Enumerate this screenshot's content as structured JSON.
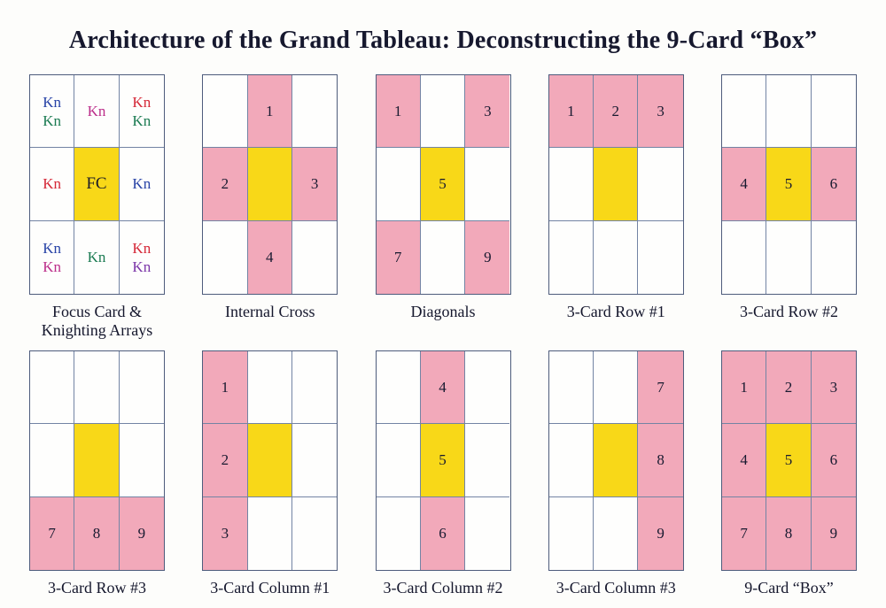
{
  "title": "Architecture of the Grand Tableau: Deconstructing the 9-Card “Box”",
  "colors": {
    "pink": "#f2a9ba",
    "yellow": "#f8d818",
    "white": "#fefefd",
    "grid_line": "#7384a4",
    "grid_border": "#4e5c7c",
    "dark": "#181a30",
    "blue": "#2742a6",
    "green": "#1b7b52",
    "red": "#d52737",
    "magenta": "#bc2e8a",
    "purple": "#7b35a8",
    "black": "#1c1c28"
  },
  "grids": [
    {
      "caption": "Focus Card &\nKnighting Arrays",
      "cells": [
        {
          "bg": "white",
          "lines": [
            {
              "text": "Kn",
              "color": "blue"
            },
            {
              "text": "Kn",
              "color": "green"
            }
          ]
        },
        {
          "bg": "white",
          "lines": [
            {
              "text": "Kn",
              "color": "magenta"
            }
          ]
        },
        {
          "bg": "white",
          "lines": [
            {
              "text": "Kn",
              "color": "red"
            },
            {
              "text": "Kn",
              "color": "green"
            }
          ]
        },
        {
          "bg": "white",
          "lines": [
            {
              "text": "Kn",
              "color": "red"
            }
          ]
        },
        {
          "bg": "yellow",
          "lines": [
            {
              "text": "FC",
              "color": "black"
            }
          ]
        },
        {
          "bg": "white",
          "lines": [
            {
              "text": "Kn",
              "color": "blue"
            }
          ]
        },
        {
          "bg": "white",
          "lines": [
            {
              "text": "Kn",
              "color": "blue"
            },
            {
              "text": "Kn",
              "color": "magenta"
            }
          ]
        },
        {
          "bg": "white",
          "lines": [
            {
              "text": "Kn",
              "color": "green"
            }
          ]
        },
        {
          "bg": "white",
          "lines": [
            {
              "text": "Kn",
              "color": "red"
            },
            {
              "text": "Kn",
              "color": "purple"
            }
          ]
        }
      ]
    },
    {
      "caption": "Internal Cross",
      "cells": [
        {
          "bg": "white",
          "lines": []
        },
        {
          "bg": "pink",
          "lines": [
            {
              "text": "1",
              "color": "dark"
            }
          ]
        },
        {
          "bg": "white",
          "lines": []
        },
        {
          "bg": "pink",
          "lines": [
            {
              "text": "2",
              "color": "dark"
            }
          ]
        },
        {
          "bg": "yellow",
          "lines": []
        },
        {
          "bg": "pink",
          "lines": [
            {
              "text": "3",
              "color": "dark"
            }
          ]
        },
        {
          "bg": "white",
          "lines": []
        },
        {
          "bg": "pink",
          "lines": [
            {
              "text": "4",
              "color": "dark"
            }
          ]
        },
        {
          "bg": "white",
          "lines": []
        }
      ]
    },
    {
      "caption": "Diagonals",
      "cells": [
        {
          "bg": "pink",
          "lines": [
            {
              "text": "1",
              "color": "dark"
            }
          ]
        },
        {
          "bg": "white",
          "lines": []
        },
        {
          "bg": "pink",
          "lines": [
            {
              "text": "3",
              "color": "dark"
            }
          ]
        },
        {
          "bg": "white",
          "lines": []
        },
        {
          "bg": "yellow",
          "lines": [
            {
              "text": "5",
              "color": "dark"
            }
          ]
        },
        {
          "bg": "white",
          "lines": []
        },
        {
          "bg": "pink",
          "lines": [
            {
              "text": "7",
              "color": "dark"
            }
          ]
        },
        {
          "bg": "white",
          "lines": []
        },
        {
          "bg": "pink",
          "lines": [
            {
              "text": "9",
              "color": "dark"
            }
          ]
        }
      ]
    },
    {
      "caption": "3-Card Row #1",
      "cells": [
        {
          "bg": "pink",
          "lines": [
            {
              "text": "1",
              "color": "dark"
            }
          ]
        },
        {
          "bg": "pink",
          "lines": [
            {
              "text": "2",
              "color": "dark"
            }
          ]
        },
        {
          "bg": "pink",
          "lines": [
            {
              "text": "3",
              "color": "dark"
            }
          ]
        },
        {
          "bg": "white",
          "lines": []
        },
        {
          "bg": "yellow",
          "lines": []
        },
        {
          "bg": "white",
          "lines": []
        },
        {
          "bg": "white",
          "lines": []
        },
        {
          "bg": "white",
          "lines": []
        },
        {
          "bg": "white",
          "lines": []
        }
      ]
    },
    {
      "caption": "3-Card Row #2",
      "cells": [
        {
          "bg": "white",
          "lines": []
        },
        {
          "bg": "white",
          "lines": []
        },
        {
          "bg": "white",
          "lines": []
        },
        {
          "bg": "pink",
          "lines": [
            {
              "text": "4",
              "color": "dark"
            }
          ]
        },
        {
          "bg": "yellow",
          "lines": [
            {
              "text": "5",
              "color": "dark"
            }
          ]
        },
        {
          "bg": "pink",
          "lines": [
            {
              "text": "6",
              "color": "dark"
            }
          ]
        },
        {
          "bg": "white",
          "lines": []
        },
        {
          "bg": "white",
          "lines": []
        },
        {
          "bg": "white",
          "lines": []
        }
      ]
    },
    {
      "caption": "3-Card Row #3",
      "cells": [
        {
          "bg": "white",
          "lines": []
        },
        {
          "bg": "white",
          "lines": []
        },
        {
          "bg": "white",
          "lines": []
        },
        {
          "bg": "white",
          "lines": []
        },
        {
          "bg": "yellow",
          "lines": []
        },
        {
          "bg": "white",
          "lines": []
        },
        {
          "bg": "pink",
          "lines": [
            {
              "text": "7",
              "color": "dark"
            }
          ]
        },
        {
          "bg": "pink",
          "lines": [
            {
              "text": "8",
              "color": "dark"
            }
          ]
        },
        {
          "bg": "pink",
          "lines": [
            {
              "text": "9",
              "color": "dark"
            }
          ]
        }
      ]
    },
    {
      "caption": "3-Card Column #1",
      "cells": [
        {
          "bg": "pink",
          "lines": [
            {
              "text": "1",
              "color": "dark"
            }
          ]
        },
        {
          "bg": "white",
          "lines": []
        },
        {
          "bg": "white",
          "lines": []
        },
        {
          "bg": "pink",
          "lines": [
            {
              "text": "2",
              "color": "dark"
            }
          ]
        },
        {
          "bg": "yellow",
          "lines": []
        },
        {
          "bg": "white",
          "lines": []
        },
        {
          "bg": "pink",
          "lines": [
            {
              "text": "3",
              "color": "dark"
            }
          ]
        },
        {
          "bg": "white",
          "lines": []
        },
        {
          "bg": "white",
          "lines": []
        }
      ]
    },
    {
      "caption": "3-Card Column #2",
      "cells": [
        {
          "bg": "white",
          "lines": []
        },
        {
          "bg": "pink",
          "lines": [
            {
              "text": "4",
              "color": "dark"
            }
          ]
        },
        {
          "bg": "white",
          "lines": []
        },
        {
          "bg": "white",
          "lines": []
        },
        {
          "bg": "yellow",
          "lines": [
            {
              "text": "5",
              "color": "dark"
            }
          ]
        },
        {
          "bg": "white",
          "lines": []
        },
        {
          "bg": "white",
          "lines": []
        },
        {
          "bg": "pink",
          "lines": [
            {
              "text": "6",
              "color": "dark"
            }
          ]
        },
        {
          "bg": "white",
          "lines": []
        }
      ]
    },
    {
      "caption": "3-Card Column #3",
      "cells": [
        {
          "bg": "white",
          "lines": []
        },
        {
          "bg": "white",
          "lines": []
        },
        {
          "bg": "pink",
          "lines": [
            {
              "text": "7",
              "color": "dark"
            }
          ]
        },
        {
          "bg": "white",
          "lines": []
        },
        {
          "bg": "yellow",
          "lines": []
        },
        {
          "bg": "pink",
          "lines": [
            {
              "text": "8",
              "color": "dark"
            }
          ]
        },
        {
          "bg": "white",
          "lines": []
        },
        {
          "bg": "white",
          "lines": []
        },
        {
          "bg": "pink",
          "lines": [
            {
              "text": "9",
              "color": "dark"
            }
          ]
        }
      ]
    },
    {
      "caption": "9-Card “Box”",
      "cells": [
        {
          "bg": "pink",
          "lines": [
            {
              "text": "1",
              "color": "dark"
            }
          ]
        },
        {
          "bg": "pink",
          "lines": [
            {
              "text": "2",
              "color": "dark"
            }
          ]
        },
        {
          "bg": "pink",
          "lines": [
            {
              "text": "3",
              "color": "dark"
            }
          ]
        },
        {
          "bg": "pink",
          "lines": [
            {
              "text": "4",
              "color": "dark"
            }
          ]
        },
        {
          "bg": "yellow",
          "lines": [
            {
              "text": "5",
              "color": "dark"
            }
          ]
        },
        {
          "bg": "pink",
          "lines": [
            {
              "text": "6",
              "color": "dark"
            }
          ]
        },
        {
          "bg": "pink",
          "lines": [
            {
              "text": "7",
              "color": "dark"
            }
          ]
        },
        {
          "bg": "pink",
          "lines": [
            {
              "text": "8",
              "color": "dark"
            }
          ]
        },
        {
          "bg": "pink",
          "lines": [
            {
              "text": "9",
              "color": "dark"
            }
          ]
        }
      ]
    }
  ]
}
